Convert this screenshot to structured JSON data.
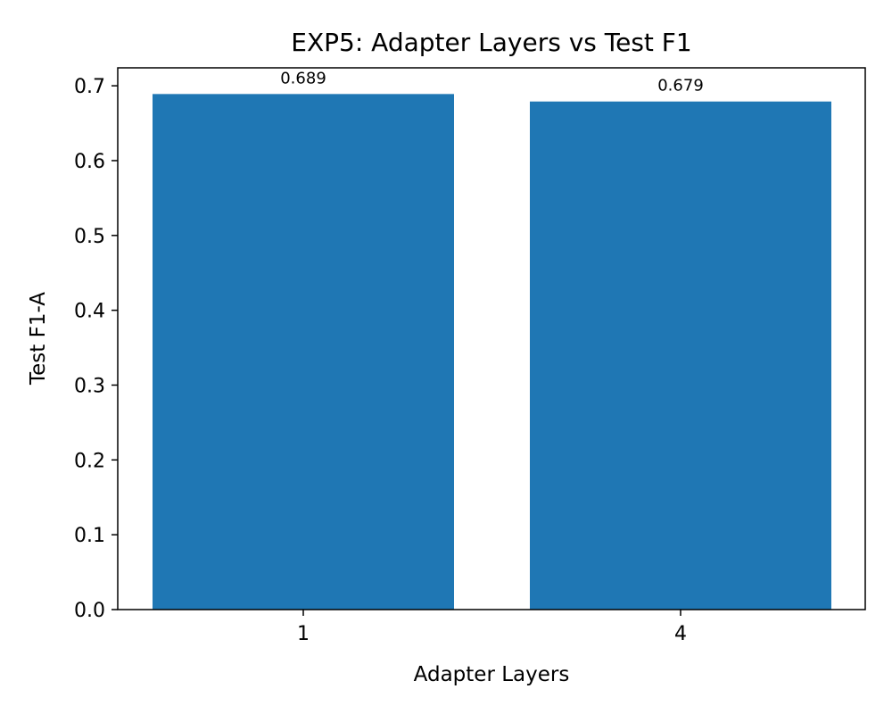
{
  "chart_data": {
    "type": "bar",
    "title": "EXP5: Adapter Layers vs Test F1",
    "xlabel": "Adapter Layers",
    "ylabel": "Test F1-A",
    "categories": [
      "1",
      "4"
    ],
    "values": [
      0.689,
      0.679
    ],
    "data_labels": [
      "0.689",
      "0.679"
    ],
    "ylim": [
      0,
      0.724
    ],
    "yticks": [
      0.0,
      0.1,
      0.2,
      0.3,
      0.4,
      0.5,
      0.6,
      0.7
    ],
    "ytick_labels": [
      "0.0",
      "0.1",
      "0.2",
      "0.3",
      "0.4",
      "0.5",
      "0.6",
      "0.7"
    ],
    "grid": false,
    "bar_color": "#1f77b4"
  }
}
